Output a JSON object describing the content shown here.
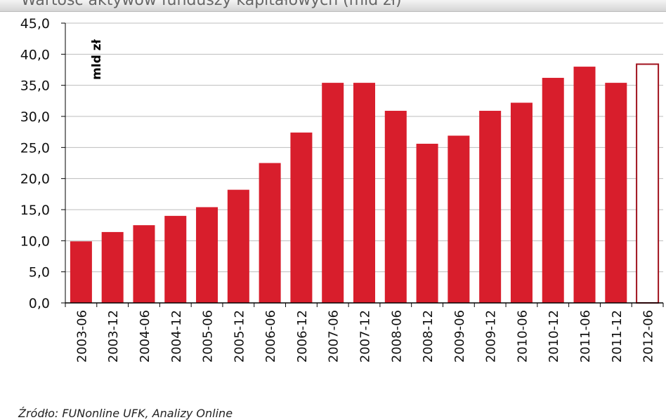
{
  "header": {
    "title": "Wartość aktywów funduszy kapitałowych (mld zł)"
  },
  "footer": {
    "source": "Źródło: FUNonline UFK, Analizy Online"
  },
  "colors": {
    "bar": "#d81e2c",
    "bar_outline": "#a0121d",
    "grid": "#bdbdbd",
    "axis": "#000000"
  },
  "chart_data": {
    "type": "bar",
    "title": "Wartość aktywów funduszy kapitałowych (mld zł)",
    "ylabel": "mld zł",
    "xlabel": "",
    "ylim": [
      0,
      45
    ],
    "yticks": [
      0,
      5,
      10,
      15,
      20,
      25,
      30,
      35,
      40,
      45
    ],
    "ytick_labels": [
      "0,0",
      "5,0",
      "10,0",
      "15,0",
      "20,0",
      "25,0",
      "30,0",
      "35,0",
      "40,0",
      "45,0"
    ],
    "grid": true,
    "categories": [
      "2003-06",
      "2003-12",
      "2004-06",
      "2004-12",
      "2005-06",
      "2005-12",
      "2006-06",
      "2006-12",
      "2007-06",
      "2007-12",
      "2008-06",
      "2008-12",
      "2009-06",
      "2009-12",
      "2010-06",
      "2010-12",
      "2011-06",
      "2011-12",
      "2012-06"
    ],
    "values": [
      9.9,
      11.4,
      12.5,
      14.0,
      15.4,
      18.2,
      22.5,
      27.4,
      35.4,
      35.4,
      30.9,
      25.6,
      26.9,
      30.9,
      32.2,
      36.2,
      38.0,
      35.4,
      38.4
    ],
    "hollow_categories": [
      "2012-06"
    ]
  }
}
